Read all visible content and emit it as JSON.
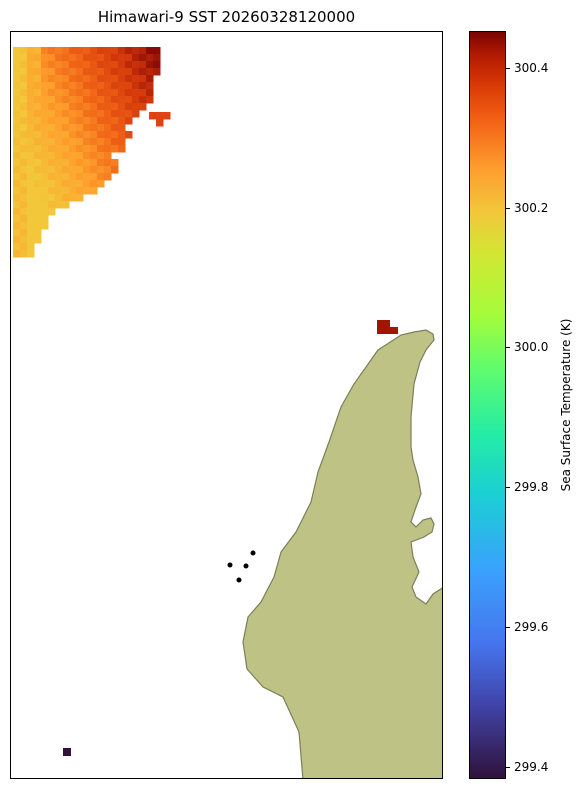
{
  "title": "Himawari-9 SST 20260328120000",
  "colorbar": {
    "label": "Sea Surface Temperature (K)",
    "colormap": "turbo",
    "range": [
      299.38,
      300.45
    ],
    "ticks": [
      "300.4",
      "300.2",
      "300.0",
      "299.8",
      "299.6",
      "299.4"
    ],
    "tick_values": [
      300.4,
      300.2,
      300.0,
      299.8,
      299.6,
      299.4
    ]
  },
  "map": {
    "land_color": "#bfc285",
    "coast_color": "#7b7f5a",
    "features": [
      "sst-pixel-grid",
      "land-mass",
      "island-dots"
    ]
  }
}
